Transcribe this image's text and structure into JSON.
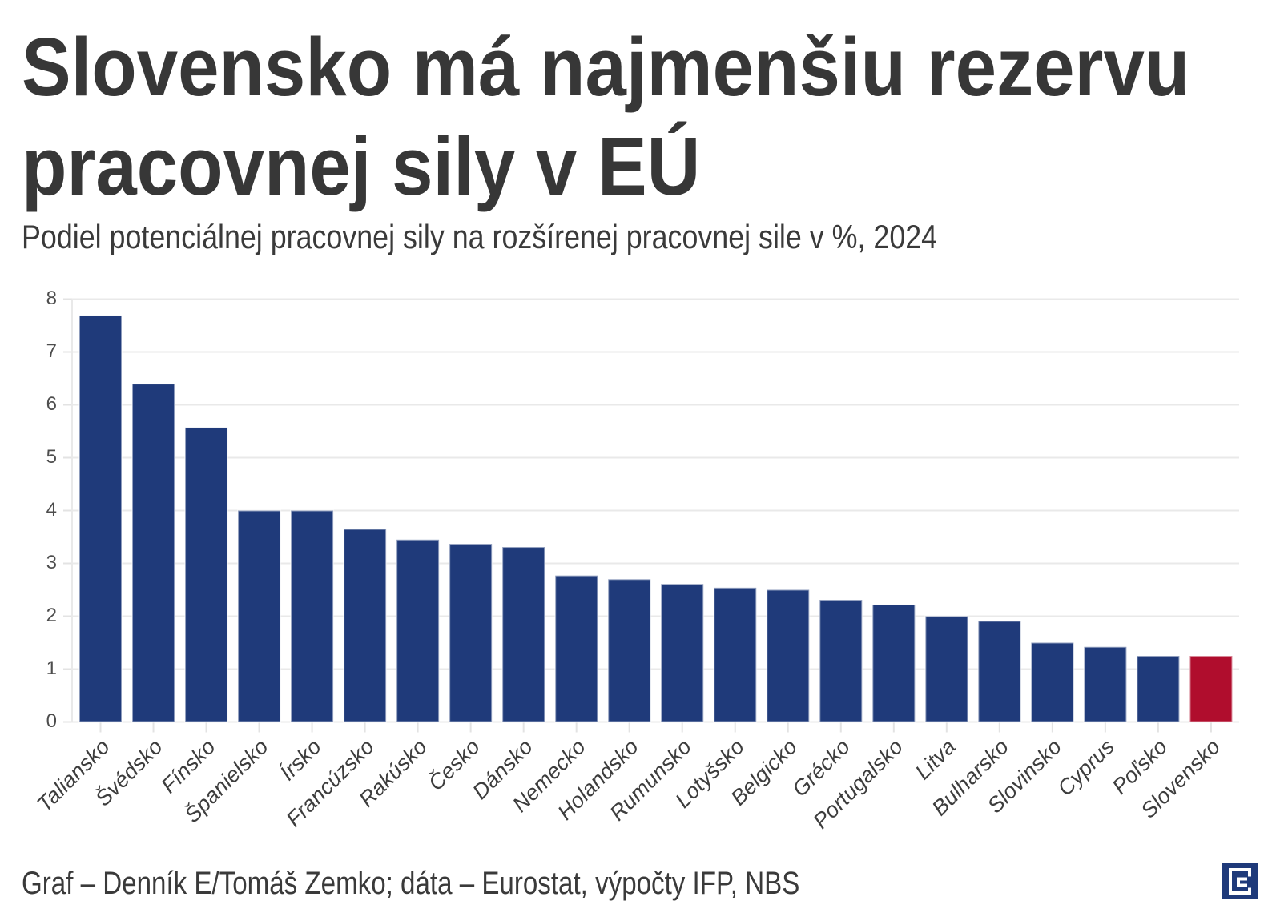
{
  "header": {
    "title": "Slovensko má najmenšiu rezervu pracovnej sily v EÚ",
    "subtitle": "Podiel potenciálnej pracovnej sily na rozšírenej pracovnej sile v %, 2024"
  },
  "chart_data": {
    "type": "bar",
    "categories": [
      "Taliansko",
      "Švédsko",
      "Fínsko",
      "Španielsko",
      "Írsko",
      "Francúzsko",
      "Rakúsko",
      "Česko",
      "Dánsko",
      "Nemecko",
      "Holandsko",
      "Rumunsko",
      "Lotyšsko",
      "Belgicko",
      "Grécko",
      "Portugalsko",
      "Litva",
      "Bulharsko",
      "Slovinsko",
      "Cyprus",
      "Poľsko",
      "Slovensko"
    ],
    "values": [
      7.69,
      6.4,
      5.57,
      4.0,
      4.0,
      3.65,
      3.45,
      3.37,
      3.31,
      2.77,
      2.7,
      2.61,
      2.54,
      2.5,
      2.31,
      2.22,
      2.0,
      1.91,
      1.5,
      1.42,
      1.25,
      1.25
    ],
    "highlight_category": "Slovensko",
    "bar_color": "#1f3a7a",
    "highlight_color": "#b00d2d",
    "ylim": [
      0,
      8
    ],
    "yticks": [
      0,
      1,
      2,
      3,
      4,
      5,
      6,
      7,
      8
    ],
    "grid": true,
    "title": "Slovensko má najmenšiu rezervu pracovnej sily v EÚ",
    "xlabel": "",
    "ylabel": ""
  },
  "footer": {
    "credit": "Graf – Denník E/Tomáš Zemko; dáta – Eurostat, výpočty IFP, NBS",
    "logo": "dennik-e-logo"
  }
}
